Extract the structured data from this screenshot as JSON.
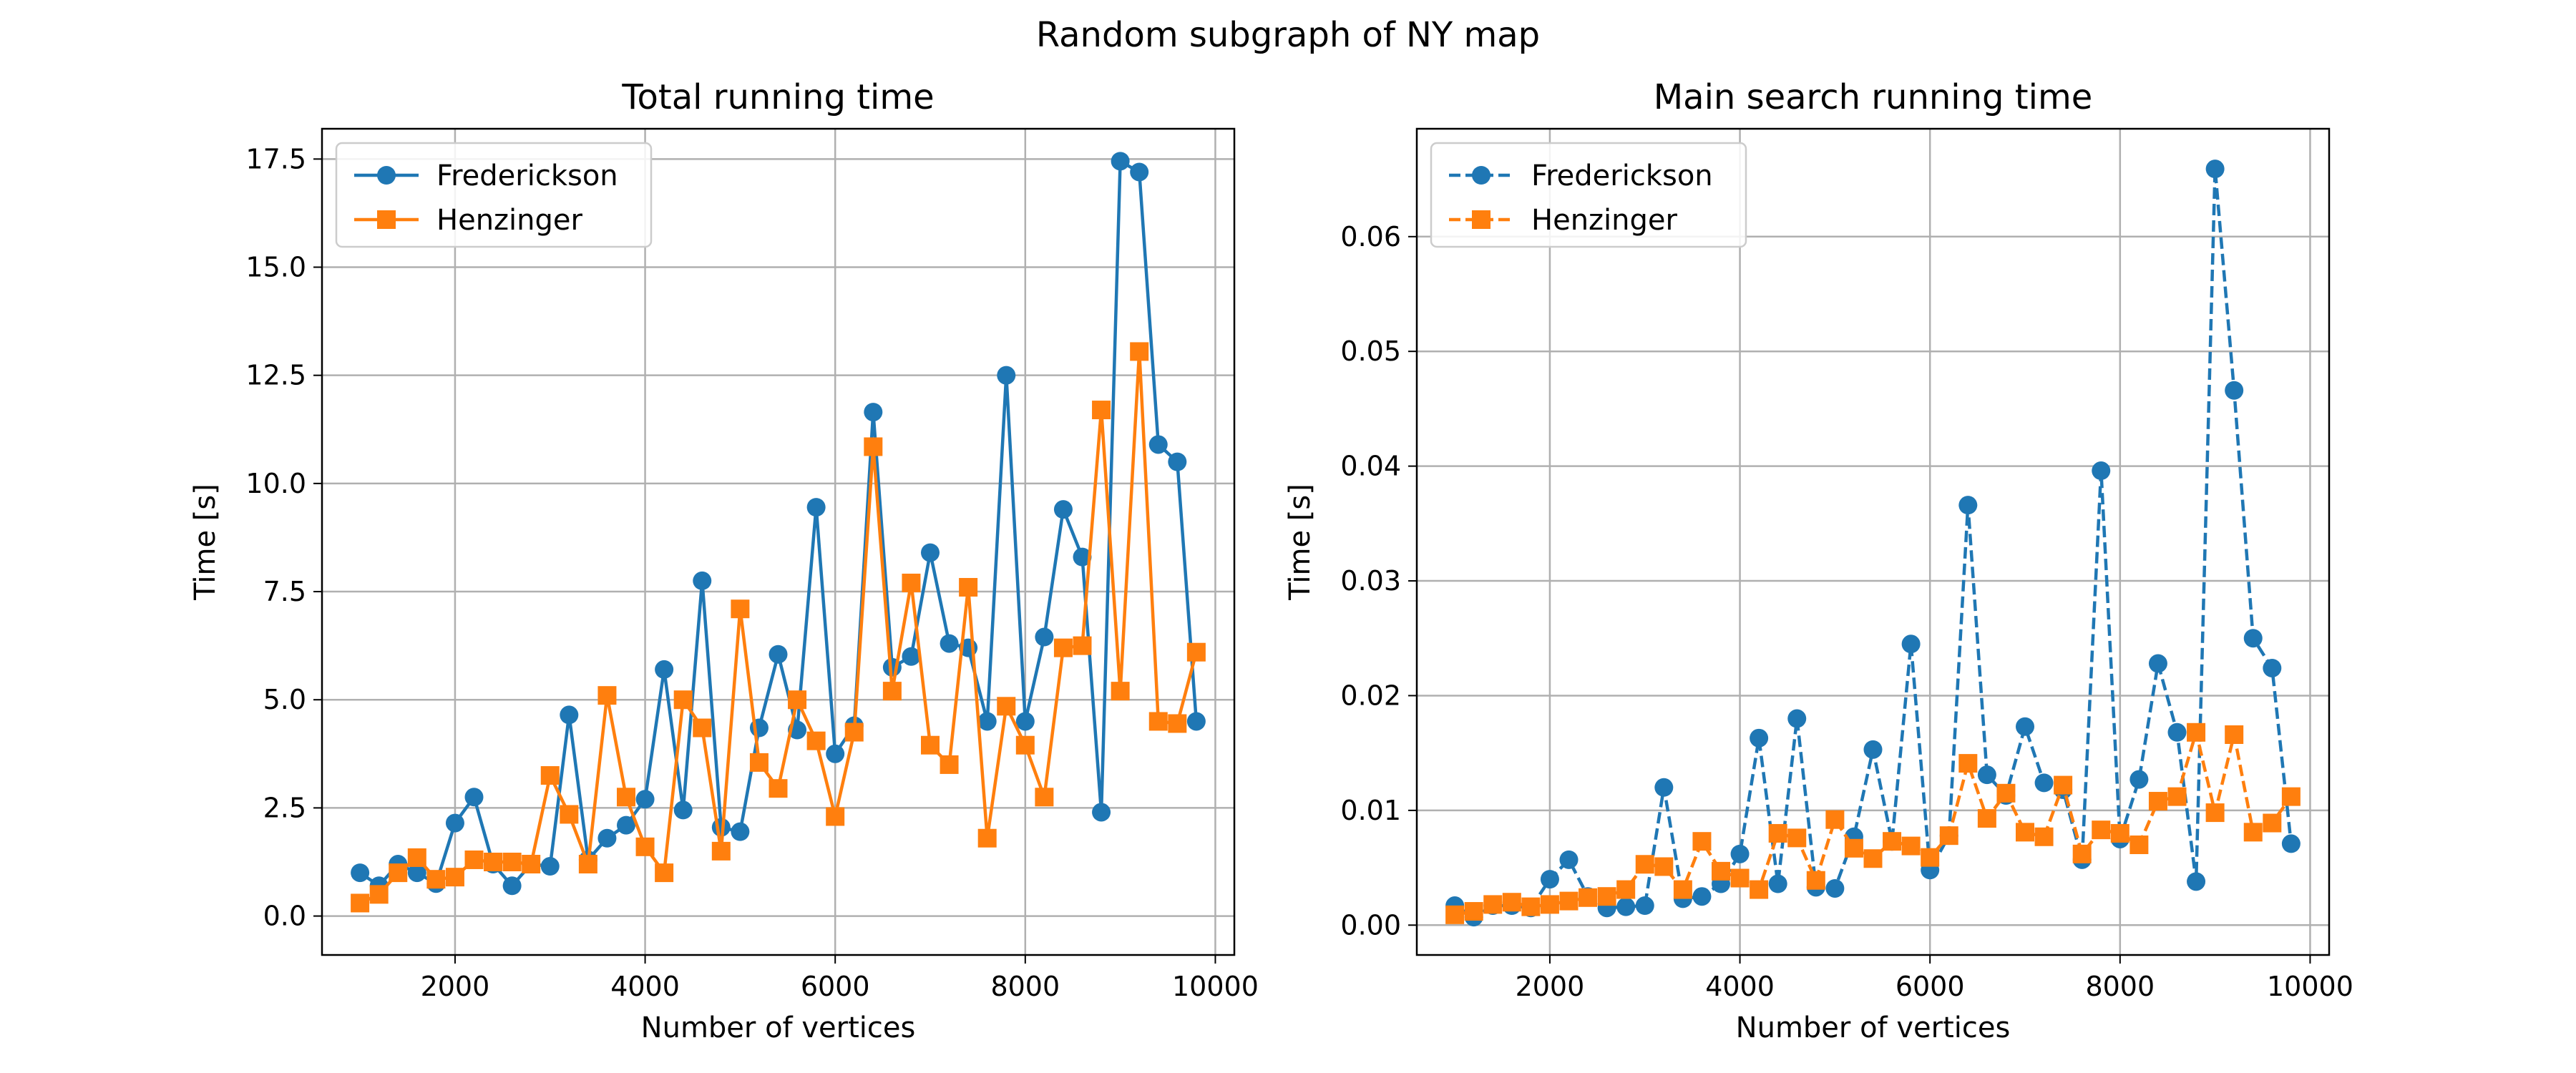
{
  "figure": {
    "suptitle": "Random subgraph of NY map"
  },
  "colors": {
    "fredrickson": "#1f77b4",
    "henzinger": "#ff7f0e",
    "grid": "#b0b0b0"
  },
  "chart_data": [
    {
      "type": "line",
      "title": "Total running time",
      "xlabel": "Number of vertices",
      "ylabel": "Time [s]",
      "xlim": [
        600,
        10200
      ],
      "ylim": [
        -0.9,
        18.2
      ],
      "xticks": [
        2000,
        4000,
        6000,
        8000,
        10000
      ],
      "xtick_labels": [
        "2000",
        "4000",
        "6000",
        "8000",
        "10000"
      ],
      "yticks": [
        0,
        2.5,
        5,
        7.5,
        10,
        12.5,
        15,
        17.5
      ],
      "ytick_labels": [
        "0.0",
        "2.5",
        "5.0",
        "7.5",
        "10.0",
        "12.5",
        "15.0",
        "17.5"
      ],
      "grid": true,
      "legend_position": "top-left",
      "line_style": "solid",
      "x": [
        1000,
        1200,
        1400,
        1600,
        1800,
        2000,
        2200,
        2400,
        2600,
        2800,
        3000,
        3200,
        3400,
        3600,
        3800,
        4000,
        4200,
        4400,
        4600,
        4800,
        5000,
        5200,
        5400,
        5600,
        5800,
        6000,
        6200,
        6400,
        6600,
        6800,
        7000,
        7200,
        7400,
        7600,
        7800,
        8000,
        8200,
        8400,
        8600,
        8800,
        9000,
        9200,
        9400,
        9600,
        9800
      ],
      "series": [
        {
          "name": "Frederickson",
          "marker": "circle",
          "values": [
            1.0,
            0.7,
            1.2,
            1.0,
            0.75,
            2.15,
            2.75,
            1.2,
            0.7,
            1.2,
            1.15,
            4.65,
            1.3,
            1.8,
            2.1,
            2.7,
            5.7,
            2.45,
            7.75,
            2.05,
            1.95,
            4.35,
            6.05,
            4.3,
            9.45,
            3.75,
            4.4,
            11.65,
            5.75,
            6.0,
            8.4,
            6.3,
            6.2,
            4.5,
            12.5,
            4.5,
            6.45,
            9.4,
            8.3,
            2.4,
            17.45,
            17.2,
            10.9,
            10.5,
            4.5
          ]
        },
        {
          "name": "Henzinger",
          "marker": "square",
          "values": [
            0.3,
            0.5,
            1.0,
            1.35,
            0.85,
            0.9,
            1.3,
            1.25,
            1.25,
            1.2,
            3.25,
            2.35,
            1.2,
            5.1,
            2.75,
            1.6,
            1.0,
            5.0,
            4.35,
            1.5,
            7.1,
            3.55,
            2.95,
            5.0,
            4.05,
            2.3,
            4.25,
            10.85,
            5.2,
            7.7,
            3.95,
            3.5,
            7.6,
            1.8,
            4.85,
            3.95,
            2.75,
            6.2,
            6.25,
            11.7,
            5.2,
            13.05,
            4.5,
            4.45,
            6.1
          ]
        }
      ]
    },
    {
      "type": "line",
      "title": "Main search running time",
      "xlabel": "Number of vertices",
      "ylabel": "Time [s]",
      "xlim": [
        600,
        10200
      ],
      "ylim": [
        -0.0026,
        0.0694
      ],
      "xticks": [
        2000,
        4000,
        6000,
        8000,
        10000
      ],
      "xtick_labels": [
        "2000",
        "4000",
        "6000",
        "8000",
        "10000"
      ],
      "yticks": [
        0,
        0.01,
        0.02,
        0.03,
        0.04,
        0.05,
        0.06
      ],
      "ytick_labels": [
        "0.00",
        "0.01",
        "0.02",
        "0.03",
        "0.04",
        "0.05",
        "0.06"
      ],
      "grid": true,
      "legend_position": "top-left",
      "line_style": "dashed",
      "x": [
        1000,
        1200,
        1400,
        1600,
        1800,
        2000,
        2200,
        2400,
        2600,
        2800,
        3000,
        3200,
        3400,
        3600,
        3800,
        4000,
        4200,
        4400,
        4600,
        4800,
        5000,
        5200,
        5400,
        5600,
        5800,
        6000,
        6200,
        6400,
        6600,
        6800,
        7000,
        7200,
        7400,
        7600,
        7800,
        8000,
        8200,
        8400,
        8600,
        8800,
        9000,
        9200,
        9400,
        9600,
        9800
      ],
      "series": [
        {
          "name": "Frederickson",
          "marker": "circle",
          "values": [
            0.0017,
            0.0007,
            0.0017,
            0.0017,
            0.0015,
            0.004,
            0.0057,
            0.0025,
            0.0015,
            0.0016,
            0.0017,
            0.012,
            0.0023,
            0.0025,
            0.0036,
            0.0062,
            0.0163,
            0.0036,
            0.018,
            0.0033,
            0.0032,
            0.0077,
            0.0153,
            0.0073,
            0.0245,
            0.0048,
            0.0078,
            0.0366,
            0.0131,
            0.0113,
            0.0173,
            0.0124,
            0.0118,
            0.0057,
            0.0396,
            0.0075,
            0.0127,
            0.0228,
            0.0168,
            0.0038,
            0.0659,
            0.0466,
            0.025,
            0.0224,
            0.0071
          ]
        },
        {
          "name": "Henzinger",
          "marker": "square",
          "values": [
            0.0009,
            0.0012,
            0.0018,
            0.002,
            0.0016,
            0.0018,
            0.0021,
            0.0024,
            0.0025,
            0.0031,
            0.0053,
            0.0051,
            0.0031,
            0.0073,
            0.0047,
            0.0041,
            0.0031,
            0.008,
            0.0076,
            0.0039,
            0.0092,
            0.0067,
            0.0058,
            0.0073,
            0.0069,
            0.0059,
            0.0078,
            0.0141,
            0.0093,
            0.0115,
            0.0081,
            0.0077,
            0.0122,
            0.0062,
            0.0083,
            0.008,
            0.007,
            0.0108,
            0.0112,
            0.0168,
            0.0098,
            0.0166,
            0.0081,
            0.0089,
            0.0112
          ]
        }
      ]
    }
  ]
}
